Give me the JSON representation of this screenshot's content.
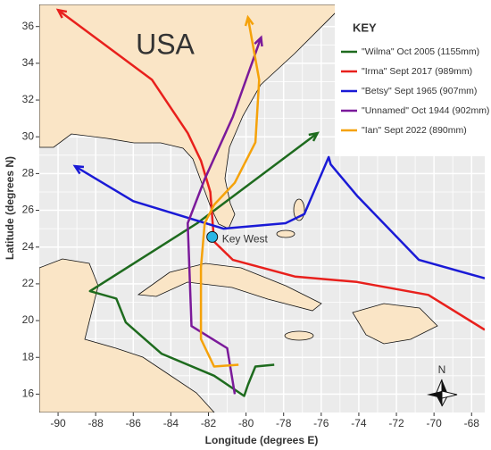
{
  "chart_data": {
    "type": "line",
    "xlabel": "Longitude (degrees E)",
    "ylabel": "Latitude (degrees N)",
    "legend_title": "KEY",
    "legend": "upper right",
    "grid": true,
    "xlim": [
      -91.0,
      -67.3
    ],
    "ylim": [
      15.0,
      37.2
    ],
    "xticks": [
      -90,
      -88,
      -86,
      -84,
      -82,
      -80,
      -78,
      -76,
      -74,
      -72,
      -70,
      -68
    ],
    "yticks": [
      16,
      18,
      20,
      22,
      24,
      26,
      28,
      30,
      32,
      34,
      36
    ],
    "annotations": [
      "USA"
    ],
    "compass": "N",
    "key_west": {
      "label": "Key West",
      "x": -81.8,
      "y": 24.55,
      "color": "#29b6e6"
    },
    "series": [
      {
        "name": "\"Wilma\" Oct 2005 (1155mm)",
        "color": "#1e6b1e",
        "x": [
          -78.5,
          -79.5,
          -79.9,
          -80.1,
          -81.7,
          -84.5,
          -86.4,
          -86.9,
          -88.3,
          -82.6,
          -76.2
        ],
        "y": [
          17.6,
          17.5,
          16.5,
          15.9,
          17.0,
          18.2,
          19.9,
          21.2,
          21.6,
          25.3,
          30.2
        ]
      },
      {
        "name": "\"Irma\" Sept 2017 (989mm)",
        "color": "#e8201c",
        "x": [
          -67.3,
          -70.3,
          -74.1,
          -77.4,
          -80.7,
          -81.7,
          -81.9,
          -82.4,
          -83.1,
          -85.0,
          -90.0
        ],
        "y": [
          19.5,
          21.4,
          22.1,
          22.4,
          23.3,
          24.3,
          27.0,
          28.7,
          30.2,
          33.1,
          36.9
        ]
      },
      {
        "name": "\"Betsy\" Sept 1965 (907mm)",
        "color": "#1a1ad6",
        "x": [
          -67.3,
          -70.8,
          -74.1,
          -75.5,
          -75.6,
          -76.9,
          -77.9,
          -81.2,
          -86.0,
          -89.1
        ],
        "y": [
          22.3,
          23.3,
          26.8,
          28.5,
          28.9,
          25.8,
          25.3,
          25.0,
          26.5,
          28.4
        ]
      },
      {
        "name": "\"Unnamed\" Oct 1944 (902mm)",
        "color": "#7b1a9a",
        "x": [
          -80.6,
          -81.0,
          -82.9,
          -83.1,
          -82.2,
          -80.7,
          -79.2
        ],
        "y": [
          16.0,
          18.5,
          19.7,
          25.3,
          27.7,
          31.1,
          35.4
        ]
      },
      {
        "name": "\"Ian\" Sept 2022 (890mm)",
        "color": "#f5a20a",
        "x": [
          -80.4,
          -81.7,
          -82.4,
          -82.4,
          -82.2,
          -81.7,
          -80.6,
          -79.5,
          -79.3,
          -79.9
        ],
        "y": [
          17.6,
          17.5,
          19.0,
          22.9,
          25.3,
          26.3,
          27.5,
          29.7,
          33.1,
          36.5
        ]
      }
    ]
  }
}
